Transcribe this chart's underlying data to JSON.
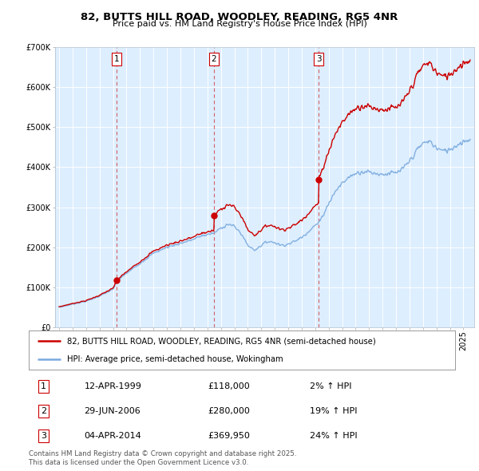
{
  "title": "82, BUTTS HILL ROAD, WOODLEY, READING, RG5 4NR",
  "subtitle": "Price paid vs. HM Land Registry's House Price Index (HPI)",
  "legend_line1": "82, BUTTS HILL ROAD, WOODLEY, READING, RG5 4NR (semi-detached house)",
  "legend_line2": "HPI: Average price, semi-detached house, Wokingham",
  "red_color": "#cc0000",
  "blue_color": "#7aaadd",
  "bg_color": "#ddeeff",
  "transactions": [
    {
      "label": "1",
      "date_num": 1999.28,
      "price": 118000,
      "pct": "2%",
      "date_str": "12-APR-1999"
    },
    {
      "label": "2",
      "date_num": 2006.49,
      "price": 280000,
      "pct": "19%",
      "date_str": "29-JUN-2006"
    },
    {
      "label": "3",
      "date_num": 2014.25,
      "price": 369950,
      "pct": "24%",
      "date_str": "04-APR-2014"
    }
  ],
  "footer_line1": "Contains HM Land Registry data © Crown copyright and database right 2025.",
  "footer_line2": "This data is licensed under the Open Government Licence v3.0.",
  "ylim": [
    0,
    700000
  ],
  "yticks": [
    0,
    100000,
    200000,
    300000,
    400000,
    500000,
    600000,
    700000
  ],
  "xlim_start": 1994.7,
  "xlim_end": 2025.8
}
